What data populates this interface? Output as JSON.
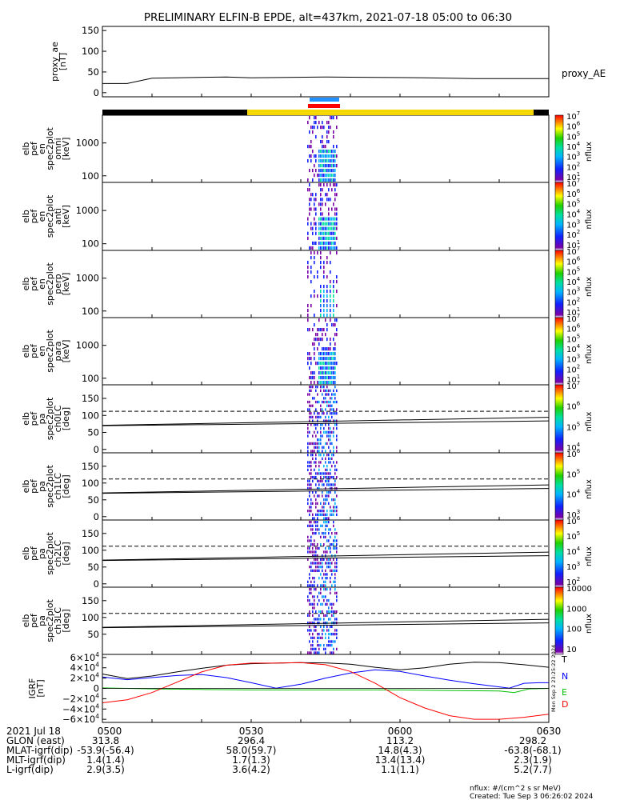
{
  "title": "PRELIMINARY ELFIN-B EPDE, alt=437km, 2021-07-18 05:00 to 06:30",
  "colors": {
    "night_bar": "#000000",
    "day_bar": "#f5d800",
    "fgm_marker": "#1e90ff",
    "epd_marker": "#ff0000"
  },
  "chart_data": [
    {
      "id": "proxy_ae",
      "type": "line",
      "ylabel": [
        "proxy_ae",
        "[nT]"
      ],
      "yticks": [
        "0",
        "50",
        "100",
        "150"
      ],
      "ylim": [
        -10,
        160
      ],
      "series": [
        {
          "name": "proxy_AE",
          "color": "#000000",
          "x": [
            0,
            5,
            10,
            15,
            25,
            30,
            45,
            55,
            65,
            75,
            90
          ],
          "y": [
            22,
            22,
            35,
            36,
            38,
            36,
            38,
            37,
            36,
            34,
            34
          ]
        }
      ]
    },
    {
      "id": "spec-en-omni",
      "type": "heatmap",
      "scale": "log",
      "ylabel": [
        "elb",
        "pef",
        "en",
        "spec2plot",
        "omni",
        "[keV]"
      ],
      "yticks": [
        "100",
        "1000"
      ],
      "yrange": [
        63,
        7000
      ],
      "cbar_label": "nflux",
      "cbar_ticks": [
        "10",
        "10",
        "10",
        "10",
        "10",
        "10",
        "10"
      ],
      "cbar_exp": [
        "1",
        "2",
        "3",
        "4",
        "5",
        "6",
        "7"
      ]
    },
    {
      "id": "spec-en-anti",
      "type": "heatmap",
      "scale": "log",
      "ylabel": [
        "elb",
        "pef",
        "en",
        "spec2plot",
        "anti",
        "[keV]"
      ],
      "yticks": [
        "100",
        "1000"
      ],
      "yrange": [
        63,
        7000
      ],
      "cbar_label": "nflux",
      "cbar_ticks": [
        "10",
        "10",
        "10",
        "10",
        "10",
        "10",
        "10"
      ],
      "cbar_exp": [
        "1",
        "2",
        "3",
        "4",
        "5",
        "6",
        "7"
      ]
    },
    {
      "id": "spec-en-perp",
      "type": "heatmap",
      "scale": "log",
      "ylabel": [
        "elb",
        "pef",
        "en",
        "spec2plot",
        "perp",
        "[keV]"
      ],
      "yticks": [
        "100",
        "1000"
      ],
      "yrange": [
        63,
        7000
      ],
      "cbar_label": "nflux",
      "cbar_ticks": [
        "10",
        "10",
        "10",
        "10",
        "10",
        "10",
        "10"
      ],
      "cbar_exp": [
        "1",
        "2",
        "3",
        "4",
        "5",
        "6",
        "7"
      ]
    },
    {
      "id": "spec-en-para",
      "type": "heatmap",
      "scale": "log",
      "ylabel": [
        "elb",
        "pef",
        "en",
        "spec2plot",
        "para",
        "[keV]"
      ],
      "yticks": [
        "100",
        "1000"
      ],
      "yrange": [
        63,
        7000
      ],
      "cbar_label": "nflux",
      "cbar_ticks": [
        "10",
        "10",
        "10",
        "10",
        "10",
        "10",
        "10"
      ],
      "cbar_exp": [
        "1",
        "2",
        "3",
        "4",
        "5",
        "6",
        "7"
      ]
    },
    {
      "id": "spec-pa-ch0LC",
      "type": "heatmap",
      "ylabel": [
        "elb",
        "pef",
        "pa",
        "spec2plot",
        "ch0LC",
        "[deg]"
      ],
      "yticks": [
        "0",
        "50",
        "100",
        "150"
      ],
      "ylim": [
        -10,
        190
      ],
      "cbar_label": "nflux",
      "cbar_ticks": [
        "10",
        "10",
        "10",
        "10"
      ],
      "cbar_exp": [
        "4",
        "5",
        "6",
        "7"
      ],
      "dashed_deg": 112,
      "solid_deg": 85
    },
    {
      "id": "spec-pa-ch1LC",
      "type": "heatmap",
      "ylabel": [
        "elb",
        "pef",
        "pa",
        "spec2plot",
        "ch1LC",
        "[deg]"
      ],
      "yticks": [
        "0",
        "50",
        "100",
        "150"
      ],
      "ylim": [
        -10,
        190
      ],
      "cbar_label": "nflux",
      "cbar_ticks": [
        "10",
        "10",
        "10",
        "10"
      ],
      "cbar_exp": [
        "3",
        "4",
        "5",
        "6"
      ],
      "dashed_deg": 112,
      "solid_deg": 85
    },
    {
      "id": "spec-pa-ch2LC",
      "type": "heatmap",
      "ylabel": [
        "elb",
        "pef",
        "pa",
        "spec2plot",
        "ch2LC",
        "[deg]"
      ],
      "yticks": [
        "0",
        "50",
        "100",
        "150"
      ],
      "ylim": [
        -10,
        190
      ],
      "cbar_label": "nflux",
      "cbar_ticks": [
        "10",
        "10",
        "10",
        "10",
        "10"
      ],
      "cbar_exp": [
        "2",
        "3",
        "4",
        "5",
        "6"
      ],
      "dashed_deg": 112,
      "solid_deg": 85
    },
    {
      "id": "spec-pa-ch3LC",
      "type": "heatmap",
      "ylabel": [
        "elb",
        "pef",
        "pa",
        "spec2plot",
        "ch3LC",
        "[deg]"
      ],
      "yticks": [
        "50",
        "100",
        "150"
      ],
      "ylim": [
        -10,
        190
      ],
      "cbar_label": "nflux",
      "cbar_ticks": [
        "10",
        "100",
        "1000",
        "10000"
      ],
      "cbar_exp": [
        "",
        "",
        "",
        ""
      ],
      "dashed_deg": 112,
      "solid_deg": 85
    },
    {
      "id": "igrf",
      "type": "line",
      "ylabel": [
        "IGRF",
        "[nT]"
      ],
      "yticks": [
        "−6×10",
        "−4×10",
        "−2×10",
        "0",
        "2×10",
        "4×10",
        "6×10"
      ],
      "ytick_exp": "4",
      "ylim": [
        -66000,
        66000
      ],
      "series": [
        {
          "name": "T",
          "color": "#000000",
          "x": [
            0,
            5,
            10,
            15,
            20,
            25,
            30,
            35,
            40,
            45,
            50,
            55,
            60,
            65,
            70,
            75,
            80,
            85,
            90
          ],
          "y": [
            28000,
            19000,
            24000,
            32000,
            39000,
            45000,
            48000,
            49000,
            50000,
            49500,
            47000,
            41000,
            36000,
            40000,
            47000,
            51000,
            50000,
            46000,
            41000
          ]
        },
        {
          "name": "N",
          "color": "#0000ff",
          "x": [
            0,
            5,
            10,
            15,
            20,
            25,
            30,
            35,
            40,
            45,
            50,
            55,
            60,
            65,
            70,
            75,
            80,
            82,
            85,
            88,
            90
          ],
          "y": [
            22000,
            17000,
            21000,
            25000,
            27000,
            21000,
            11000,
            500,
            8000,
            20000,
            30000,
            36000,
            33000,
            24000,
            16000,
            9000,
            3000,
            500,
            10000,
            11000,
            11000
          ]
        },
        {
          "name": "E",
          "color": "#00c000",
          "x": [
            0,
            10,
            20,
            30,
            40,
            50,
            60,
            70,
            80,
            83,
            86,
            90
          ],
          "y": [
            1000,
            -1000,
            -2000,
            -3000,
            -3000,
            -3000,
            -3000,
            -4000,
            -5000,
            -8000,
            -1000,
            0
          ]
        },
        {
          "name": "D",
          "color": "#ff0000",
          "x": [
            0,
            5,
            10,
            15,
            20,
            25,
            30,
            35,
            40,
            45,
            50,
            55,
            60,
            65,
            70,
            75,
            80,
            85,
            90
          ],
          "y": [
            -28000,
            -22000,
            -8000,
            12000,
            32000,
            45000,
            49000,
            49000,
            50000,
            46000,
            33000,
            10000,
            -18000,
            -38000,
            -53000,
            -60000,
            -60000,
            -56000,
            -50000
          ]
        }
      ]
    }
  ],
  "xaxis": {
    "tick_labels": [
      "0500",
      "0530",
      "0600",
      "0630"
    ],
    "tick_minutes": [
      0,
      30,
      60,
      90
    ],
    "row_labels": [
      "2021 Jul 18",
      "GLON (east)",
      "MLAT-igrf(dip)",
      "MLT-igrf(dip)",
      "L-igrf(dip)"
    ],
    "rows": [
      [
        "313.8",
        "296.4",
        "113.2",
        "298.2"
      ],
      [
        "-53.9(-56.4)",
        "58.0(59.7)",
        "14.8(4.3)",
        "-63.8(-68.1)"
      ],
      [
        "1.4(1.4)",
        "1.7(1.3)",
        "13.4(13.4)",
        "2.3(1.9)"
      ],
      [
        "2.9(3.5)",
        "3.6(4.2)",
        "1.1(1.1)",
        "5.2(7.7)"
      ]
    ]
  },
  "footer": {
    "units": "nflux: #/(cm^2 s sr MeV)",
    "created": "Created: Tue Sep  3 06:26:02 2024",
    "side_stamp": "Mon Sep  2 23:25:22 2024"
  }
}
